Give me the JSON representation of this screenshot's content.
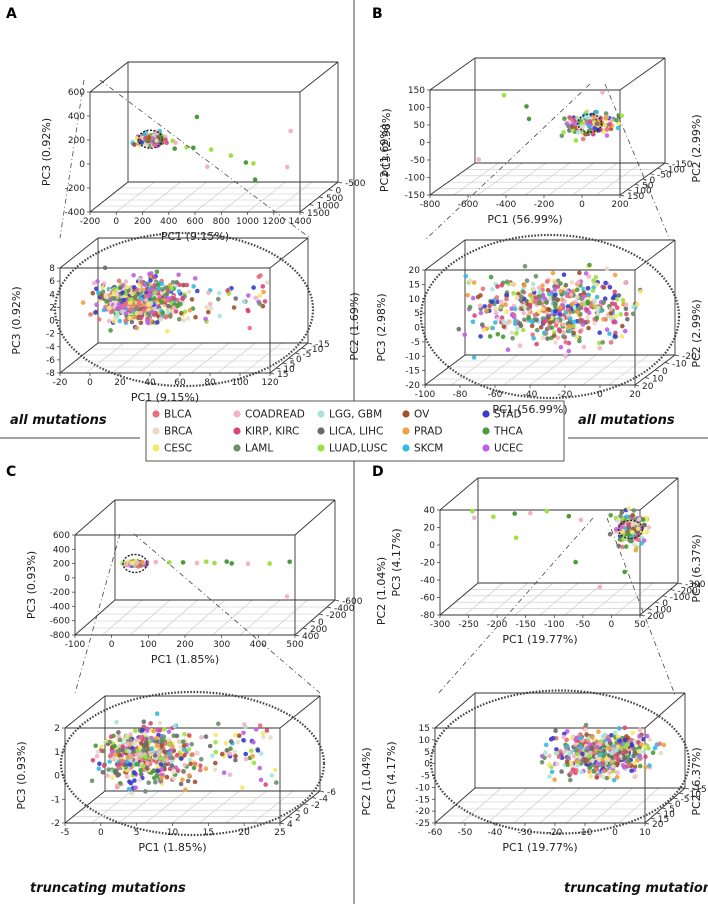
{
  "figure": {
    "captions": {
      "top_left": "all mutations",
      "top_right": "all mutations",
      "bottom_left": "truncating mutations",
      "bottom_right": "truncating mutations"
    }
  },
  "legend": {
    "items": [
      {
        "label": "BLCA",
        "color": "#e8707a"
      },
      {
        "label": "BRCA",
        "color": "#e8dcc8"
      },
      {
        "label": "CESC",
        "color": "#f5e86a"
      },
      {
        "label": "COADREAD",
        "color": "#f2b3c4"
      },
      {
        "label": "KIRP, KIRC",
        "color": "#d9487a"
      },
      {
        "label": "LAML",
        "color": "#6a8f6a"
      },
      {
        "label": "LGG, GBM",
        "color": "#a8e4dc"
      },
      {
        "label": "LICA, LIHC",
        "color": "#6a6a6a"
      },
      {
        "label": "LUAD,LUSC",
        "color": "#9ee040"
      },
      {
        "label": "OV",
        "color": "#a0522d"
      },
      {
        "label": "PRAD",
        "color": "#f0a040"
      },
      {
        "label": "SKCM",
        "color": "#38b8e0"
      },
      {
        "label": "STAD",
        "color": "#3a3acf"
      },
      {
        "label": "THCA",
        "color": "#4a9a3a"
      },
      {
        "label": "UCEC",
        "color": "#c060e0"
      }
    ]
  },
  "chart_data": [
    {
      "panel": "A",
      "view": "overview",
      "type": "scatter",
      "xlabel": "PC1 (9.15%)",
      "ylabel": "PC2 (1.69%)",
      "zlabel": "PC3 (0.92%)",
      "xticks": [
        "-200",
        "0",
        "200",
        "400",
        "600",
        "800",
        "1000",
        "1200",
        "1400"
      ],
      "yticks": [
        "-500",
        "0",
        "500",
        "1000",
        "1500"
      ],
      "zticks": [
        "-400",
        "-200",
        "0",
        "200",
        "400",
        "600"
      ],
      "xlim": [
        -200,
        1400
      ],
      "ylim": [
        -500,
        1500
      ],
      "zlim": [
        -400,
        600
      ],
      "cluster": {
        "x": [
          -100,
          200
        ],
        "y": [
          -200,
          300
        ],
        "z": [
          -50,
          100
        ]
      },
      "outliers": [
        [
          150,
          400,
          120
        ],
        [
          300,
          600,
          80
        ],
        [
          500,
          900,
          60
        ],
        [
          650,
          1200,
          -60
        ],
        [
          700,
          300,
          -80
        ],
        [
          800,
          200,
          -150
        ],
        [
          1100,
          100,
          -200
        ],
        [
          420,
          700,
          40
        ],
        [
          600,
          1400,
          380
        ],
        [
          1300,
          1300,
          250
        ],
        [
          900,
          500,
          -120
        ],
        [
          250,
          150,
          -40
        ],
        [
          350,
          800,
          90
        ],
        [
          550,
          300,
          -30
        ],
        [
          1000,
          1100,
          -180
        ]
      ]
    },
    {
      "panel": "A",
      "view": "zoom",
      "type": "scatter",
      "xlabel": "PC1 (9.15%)",
      "ylabel": "PC2 (1.69%)",
      "zlabel": "PC3 (0.92%)",
      "xticks": [
        "-20",
        "0",
        "20",
        "40",
        "60",
        "80",
        "100",
        "120"
      ],
      "yticks": [
        "-15",
        "-10",
        "-5",
        "0",
        "5",
        "10",
        "15"
      ],
      "zticks": [
        "-8",
        "-6",
        "-4",
        "-2",
        "0",
        "2",
        "4",
        "6",
        "8"
      ],
      "xlim": [
        -20,
        120
      ],
      "ylim": [
        -15,
        15
      ],
      "zlim": [
        -8,
        8
      ],
      "cluster": {
        "x": [
          -15,
          60
        ],
        "y": [
          -10,
          12
        ],
        "z": [
          -4,
          6
        ]
      }
    },
    {
      "panel": "B",
      "view": "overview",
      "type": "scatter",
      "xlabel": "PC1 (56.99%)",
      "ylabel": "PC2 (2.99%)",
      "zlabel": "PC3 (2.98%)",
      "xticks": [
        "-800",
        "-600",
        "-400",
        "-200",
        "0",
        "200"
      ],
      "yticks": [
        "-150",
        "-100",
        "-50",
        "0",
        "50",
        "100",
        "150"
      ],
      "zticks": [
        "-150",
        "-100",
        "-50",
        "0",
        "50",
        "100",
        "150"
      ],
      "xlim": [
        -800,
        200
      ],
      "ylim": [
        -150,
        150
      ],
      "zlim": [
        -150,
        150
      ],
      "cluster": {
        "x": [
          -250,
          150
        ],
        "y": [
          -50,
          120
        ],
        "z": [
          -20,
          60
        ]
      },
      "outliers": [
        [
          -780,
          -150,
          -140
        ],
        [
          -450,
          100,
          120
        ],
        [
          -300,
          140,
          100
        ],
        [
          100,
          140,
          140
        ],
        [
          -150,
          0,
          -40
        ],
        [
          -350,
          60,
          40
        ]
      ]
    },
    {
      "panel": "B",
      "view": "zoom",
      "type": "scatter",
      "xlabel": "PC1 (56.99%)",
      "ylabel": "PC2 (2.99%)",
      "zlabel": "PC3 (2.98%)",
      "xticks": [
        "-100",
        "-80",
        "-60",
        "-40",
        "-20",
        "0",
        "20"
      ],
      "yticks": [
        "-20",
        "-10",
        "0",
        "10",
        "20"
      ],
      "zticks": [
        "-20",
        "-15",
        "-10",
        "-5",
        "0",
        "5",
        "10",
        "15",
        "20"
      ],
      "xlim": [
        -100,
        20
      ],
      "ylim": [
        -20,
        20
      ],
      "zlim": [
        -20,
        20
      ],
      "cluster": {
        "x": [
          -90,
          20
        ],
        "y": [
          -18,
          18
        ],
        "z": [
          -16,
          18
        ]
      }
    },
    {
      "panel": "C",
      "view": "overview",
      "type": "scatter",
      "xlabel": "PC1 (1.85%)",
      "ylabel": "PC2 (1.04%)",
      "zlabel": "PC3 (0.93%)",
      "xticks": [
        "-100",
        "0",
        "100",
        "200",
        "300",
        "400",
        "500"
      ],
      "yticks": [
        "-600",
        "-400",
        "-200",
        "0",
        "200",
        "400"
      ],
      "zticks": [
        "-800",
        "-600",
        "-400",
        "-200",
        "0",
        "200",
        "400",
        "600"
      ],
      "xlim": [
        -100,
        500
      ],
      "ylim": [
        -600,
        400
      ],
      "zlim": [
        -800,
        600
      ],
      "cluster": {
        "x": [
          -20,
          60
        ],
        "y": [
          -50,
          50
        ],
        "z": [
          -30,
          40
        ]
      },
      "outliers": [
        [
          80,
          30,
          40
        ],
        [
          120,
          60,
          50
        ],
        [
          160,
          80,
          60
        ],
        [
          200,
          100,
          60
        ],
        [
          250,
          120,
          70
        ],
        [
          300,
          150,
          80
        ],
        [
          350,
          200,
          100
        ],
        [
          420,
          300,
          150
        ],
        [
          480,
          350,
          200
        ],
        [
          380,
          -500,
          -700
        ],
        [
          220,
          50,
          55
        ],
        [
          280,
          90,
          75
        ]
      ]
    },
    {
      "panel": "C",
      "view": "zoom",
      "type": "scatter",
      "xlabel": "PC1 (1.85%)",
      "ylabel": "PC2 (1.04%)",
      "zlabel": "PC3 (0.93%)",
      "xticks": [
        "-5",
        "0",
        "5",
        "10",
        "15",
        "20",
        "25"
      ],
      "yticks": [
        "-6",
        "-4",
        "-2",
        "0",
        "2",
        "4"
      ],
      "zticks": [
        "-2",
        "-1",
        "0",
        "1",
        "2"
      ],
      "xlim": [
        -5,
        25
      ],
      "ylim": [
        -6,
        4
      ],
      "zlim": [
        -2,
        2
      ],
      "cluster": {
        "x": [
          -4,
          12
        ],
        "y": [
          -5,
          3.5
        ],
        "z": [
          -1.5,
          2
        ]
      }
    },
    {
      "panel": "D",
      "view": "overview",
      "type": "scatter",
      "xlabel": "PC1 (19.77%)",
      "ylabel": "PC2 (6.37%)",
      "zlabel": "PC3 (4.17%)",
      "xticks": [
        "-300",
        "-250",
        "-200",
        "-150",
        "-100",
        "-50",
        "0",
        "50"
      ],
      "yticks": [
        "-300",
        "-200",
        "-100",
        "0",
        "100",
        "200"
      ],
      "zticks": [
        "-80",
        "-60",
        "-40",
        "-20",
        "0",
        "20",
        "40"
      ],
      "xlim": [
        -300,
        50
      ],
      "ylim": [
        -300,
        200
      ],
      "zlim": [
        -80,
        40
      ],
      "cluster": {
        "x": [
          -30,
          50
        ],
        "y": [
          -100,
          150
        ],
        "z": [
          -20,
          30
        ]
      },
      "outliers": [
        [
          -260,
          50,
          20
        ],
        [
          -220,
          100,
          25
        ],
        [
          -180,
          120,
          30
        ],
        [
          -150,
          140,
          32
        ],
        [
          -120,
          150,
          35
        ],
        [
          -80,
          160,
          30
        ],
        [
          -60,
          150,
          25
        ],
        [
          -200,
          -50,
          -10
        ],
        [
          -100,
          -80,
          -40
        ],
        [
          -60,
          -100,
          -70
        ],
        [
          -250,
          150,
          35
        ],
        [
          -30,
          -200,
          -60
        ]
      ]
    },
    {
      "panel": "D",
      "view": "zoom",
      "type": "scatter",
      "xlabel": "PC1 (19.77%)",
      "ylabel": "PC2 (6.37%)",
      "zlabel": "PC3 (4.17%)",
      "xticks": [
        "-60",
        "-50",
        "-40",
        "-30",
        "-20",
        "-10",
        "0",
        "10"
      ],
      "yticks": [
        "-15",
        "-10",
        "-5",
        "0",
        "5",
        "10",
        "15",
        "20"
      ],
      "zticks": [
        "-25",
        "-20",
        "-15",
        "-10",
        "-5",
        "0",
        "5",
        "10",
        "15"
      ],
      "xlim": [
        -60,
        10
      ],
      "ylim": [
        -15,
        20
      ],
      "zlim": [
        -25,
        15
      ],
      "cluster": {
        "x": [
          -30,
          10
        ],
        "y": [
          -10,
          18
        ],
        "z": [
          -15,
          10
        ]
      }
    }
  ]
}
